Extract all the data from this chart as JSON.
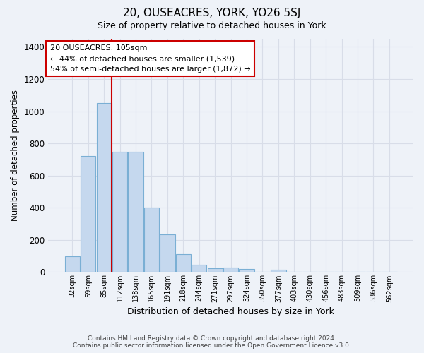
{
  "title": "20, OUSEACRES, YORK, YO26 5SJ",
  "subtitle": "Size of property relative to detached houses in York",
  "xlabel": "Distribution of detached houses by size in York",
  "ylabel": "Number of detached properties",
  "footer_line1": "Contains HM Land Registry data © Crown copyright and database right 2024.",
  "footer_line2": "Contains public sector information licensed under the Open Government Licence v3.0.",
  "annotation_line1": "20 OUSEACRES: 105sqm",
  "annotation_line2": "← 44% of detached houses are smaller (1,539)",
  "annotation_line3": "54% of semi-detached houses are larger (1,872) →",
  "bar_color": "#c5d8ee",
  "bar_edge_color": "#7aafd4",
  "redline_color": "#cc0000",
  "background_color": "#eef2f8",
  "grid_color": "#d8dde8",
  "categories": [
    "32sqm",
    "59sqm",
    "85sqm",
    "112sqm",
    "138sqm",
    "165sqm",
    "191sqm",
    "218sqm",
    "244sqm",
    "271sqm",
    "297sqm",
    "324sqm",
    "350sqm",
    "377sqm",
    "403sqm",
    "430sqm",
    "456sqm",
    "483sqm",
    "509sqm",
    "536sqm",
    "562sqm"
  ],
  "values": [
    100,
    720,
    1050,
    750,
    750,
    400,
    235,
    110,
    45,
    25,
    30,
    20,
    0,
    15,
    0,
    0,
    0,
    0,
    0,
    0,
    0
  ],
  "redline_bar_index": 2,
  "ylim": [
    0,
    1450
  ],
  "yticks": [
    0,
    200,
    400,
    600,
    800,
    1000,
    1200,
    1400
  ]
}
